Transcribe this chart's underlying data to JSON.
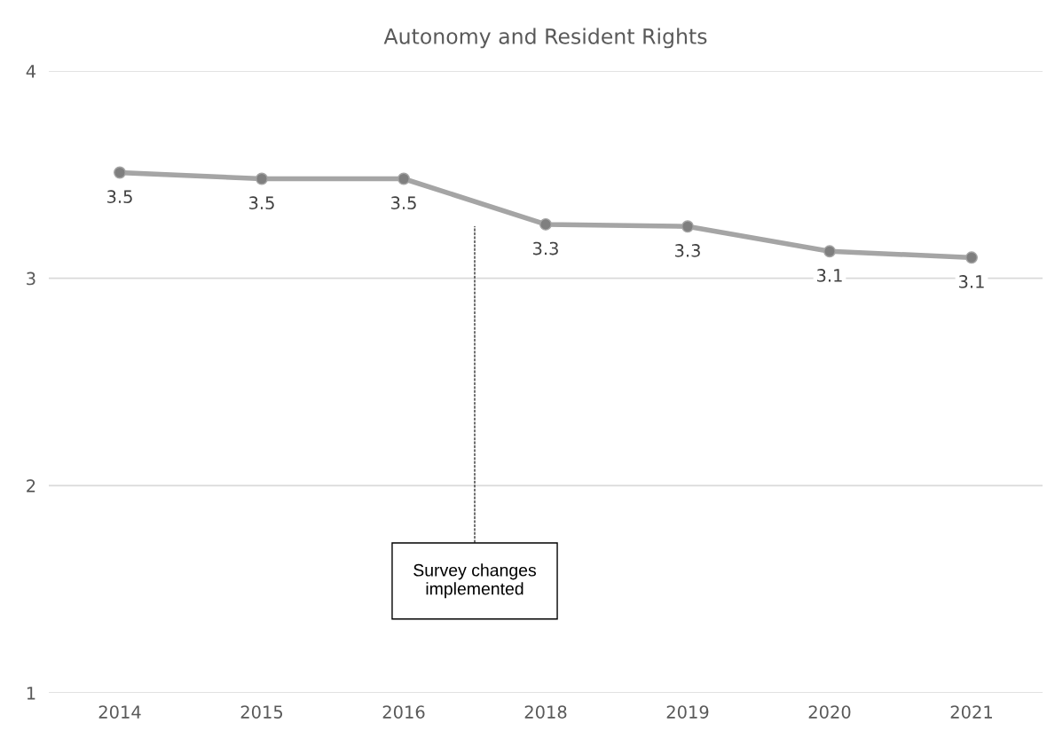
{
  "chart_data": {
    "type": "line",
    "title": "Autonomy and Resident Rights",
    "categories": [
      "2014",
      "2015",
      "2016",
      "2018",
      "2019",
      "2020",
      "2021"
    ],
    "series": [
      {
        "color": "#a5a5a5",
        "values": [
          3.51,
          3.48,
          3.48,
          3.26,
          3.25,
          3.13,
          3.1
        ],
        "value_labels": [
          "3.5",
          "3.5",
          "3.5",
          "3.3",
          "3.3",
          "3.1",
          "3.1"
        ]
      }
    ],
    "ylim": [
      1,
      4
    ],
    "yticks": [
      1,
      2,
      3,
      4
    ],
    "grid": "y",
    "marker": "circle",
    "line_style": "solid",
    "legend": false,
    "annotations": [
      "Survey changes\nimplemented"
    ]
  }
}
